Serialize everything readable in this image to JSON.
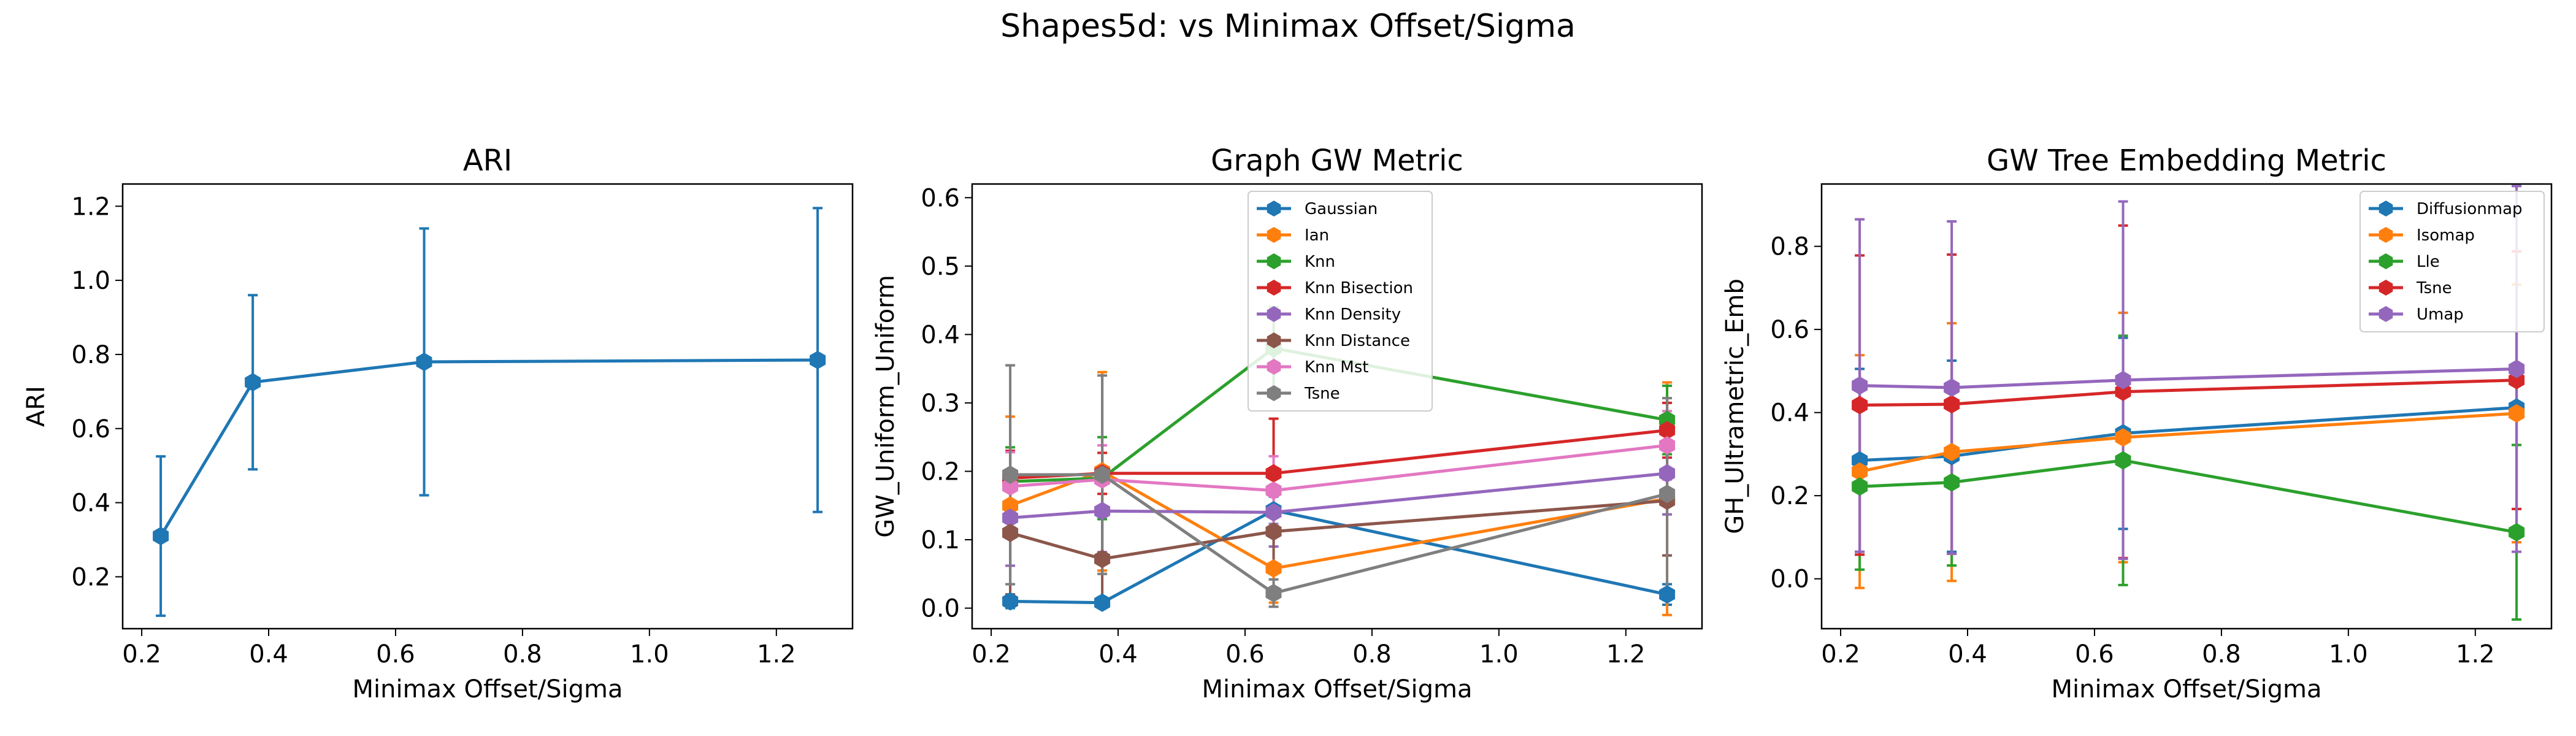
{
  "figure": {
    "title": "Shapes5d: vs Minimax Offset/Sigma"
  },
  "chart_data": [
    {
      "type": "line",
      "title": "ARI",
      "xlabel": "Minimax Offset/Sigma",
      "ylabel": "ARI",
      "xlim": [
        0.17,
        1.32
      ],
      "ylim": [
        0.06,
        1.26
      ],
      "xticks": [
        0.2,
        0.4,
        0.6,
        0.8,
        1.0,
        1.2
      ],
      "xtick_labels": [
        "0.2",
        "0.4",
        "0.6",
        "0.8",
        "1.0",
        "1.2"
      ],
      "yticks": [
        0.2,
        0.4,
        0.6,
        0.8,
        1.0,
        1.2
      ],
      "ytick_labels": [
        "0.2",
        "0.4",
        "0.6",
        "0.8",
        "1.0",
        "1.2"
      ],
      "x": [
        0.23,
        0.375,
        0.645,
        1.265
      ],
      "legend": null,
      "series": [
        {
          "name": "",
          "color": "#1f77b4",
          "values": [
            0.31,
            0.725,
            0.78,
            0.785
          ],
          "err": [
            0.215,
            0.235,
            0.36,
            0.41
          ]
        }
      ]
    },
    {
      "type": "line",
      "title": "Graph GW Metric",
      "xlabel": "Minimax Offset/Sigma",
      "ylabel": "GW_Uniform_Uniform",
      "xlim": [
        0.17,
        1.32
      ],
      "ylim": [
        -0.03,
        0.62
      ],
      "xticks": [
        0.2,
        0.4,
        0.6,
        0.8,
        1.0,
        1.2
      ],
      "xtick_labels": [
        "0.2",
        "0.4",
        "0.6",
        "0.8",
        "1.0",
        "1.2"
      ],
      "yticks": [
        0.0,
        0.1,
        0.2,
        0.3,
        0.4,
        0.5,
        0.6
      ],
      "ytick_labels": [
        "0.0",
        "0.1",
        "0.2",
        "0.3",
        "0.4",
        "0.5",
        "0.6"
      ],
      "x": [
        0.23,
        0.375,
        0.645,
        1.265
      ],
      "legend": "top-center",
      "series": [
        {
          "name": "Gaussian",
          "color": "#1f77b4",
          "values": [
            0.01,
            0.008,
            0.143,
            0.02
          ],
          "err": [
            0.01,
            0.008,
            0.02,
            0.015
          ]
        },
        {
          "name": "Ian",
          "color": "#ff7f0e",
          "values": [
            0.15,
            0.2,
            0.058,
            0.16
          ],
          "err": [
            0.13,
            0.145,
            0.05,
            0.17
          ]
        },
        {
          "name": "Knn",
          "color": "#2ca02c",
          "values": [
            0.185,
            0.19,
            0.38,
            0.275
          ],
          "err": [
            0.05,
            0.06,
            0.06,
            0.05
          ]
        },
        {
          "name": "Knn Bisection",
          "color": "#d62728",
          "values": [
            0.19,
            0.197,
            0.197,
            0.26
          ],
          "err": [
            0.04,
            0.03,
            0.08,
            0.04
          ]
        },
        {
          "name": "Knn Density",
          "color": "#9467bd",
          "values": [
            0.132,
            0.142,
            0.14,
            0.197
          ],
          "err": [
            0.07,
            0.06,
            0.05,
            0.06
          ]
        },
        {
          "name": "Knn Distance",
          "color": "#8c564b",
          "values": [
            0.11,
            0.072,
            0.112,
            0.157
          ],
          "err": [
            0.09,
            0.07,
            0.06,
            0.08
          ]
        },
        {
          "name": "Knn Mst",
          "color": "#e377c2",
          "values": [
            0.178,
            0.188,
            0.172,
            0.238
          ],
          "err": [
            0.05,
            0.05,
            0.05,
            0.05
          ]
        },
        {
          "name": "Tsne",
          "color": "#7f7f7f",
          "values": [
            0.195,
            0.195,
            0.022,
            0.167
          ],
          "err": [
            0.16,
            0.145,
            0.02,
            0.14
          ]
        }
      ]
    },
    {
      "type": "line",
      "title": "GW Tree Embedding Metric",
      "xlabel": "Minimax Offset/Sigma",
      "ylabel": "GH_Ultrametric_Emb",
      "xlim": [
        0.17,
        1.32
      ],
      "ylim": [
        -0.12,
        0.95
      ],
      "xticks": [
        0.2,
        0.4,
        0.6,
        0.8,
        1.0,
        1.2
      ],
      "xtick_labels": [
        "0.2",
        "0.4",
        "0.6",
        "0.8",
        "1.0",
        "1.2"
      ],
      "yticks": [
        0.0,
        0.2,
        0.4,
        0.6,
        0.8
      ],
      "ytick_labels": [
        "0.0",
        "0.2",
        "0.4",
        "0.6",
        "0.8"
      ],
      "x": [
        0.23,
        0.375,
        0.645,
        1.265
      ],
      "legend": "top-right",
      "series": [
        {
          "name": "Diffusionmap",
          "color": "#1f77b4",
          "values": [
            0.285,
            0.295,
            0.35,
            0.412
          ],
          "err": [
            0.22,
            0.23,
            0.23,
            0.09
          ]
        },
        {
          "name": "Isomap",
          "color": "#ff7f0e",
          "values": [
            0.258,
            0.305,
            0.34,
            0.398
          ],
          "err": [
            0.28,
            0.31,
            0.3,
            0.31
          ]
        },
        {
          "name": "Lle",
          "color": "#2ca02c",
          "values": [
            0.222,
            0.232,
            0.285,
            0.112
          ],
          "err": [
            0.2,
            0.2,
            0.3,
            0.21
          ]
        },
        {
          "name": "Tsne",
          "color": "#d62728",
          "values": [
            0.418,
            0.42,
            0.45,
            0.478
          ],
          "err": [
            0.36,
            0.36,
            0.4,
            0.31
          ]
        },
        {
          "name": "Umap",
          "color": "#9467bd",
          "values": [
            0.465,
            0.46,
            0.478,
            0.505
          ],
          "err": [
            0.4,
            0.4,
            0.43,
            0.44
          ]
        }
      ]
    }
  ]
}
